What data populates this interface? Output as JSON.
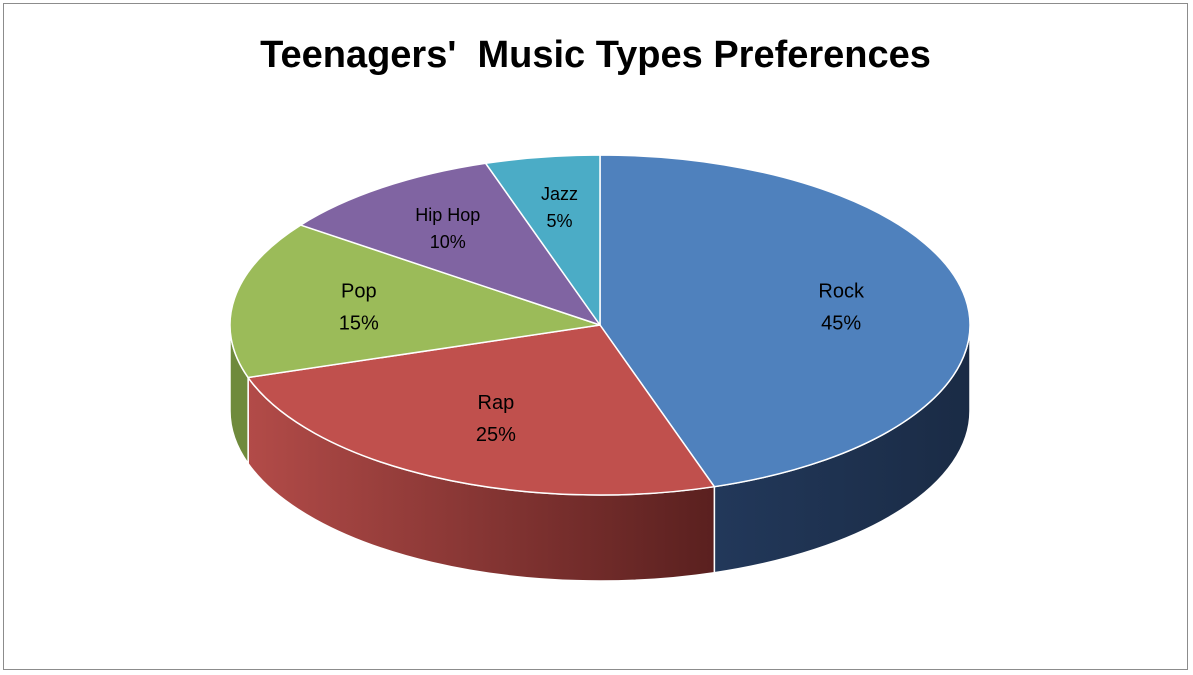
{
  "chart_data": {
    "type": "pie",
    "title": "Teenagers'  Music Types Preferences",
    "slices": [
      {
        "label": "Rock",
        "value": 45,
        "value_label": "45%",
        "color": "#4F81BD",
        "side_color": "#1F3350"
      },
      {
        "label": "Rap",
        "value": 25,
        "value_label": "25%",
        "color": "#C0504D",
        "side_color": "#8E3836"
      },
      {
        "label": "Pop",
        "value": 15,
        "value_label": "15%",
        "color": "#9BBB59",
        "side_color": "#6F8A3C"
      },
      {
        "label": "Hip Hop",
        "value": 10,
        "value_label": "10%",
        "color": "#8064A2",
        "side_color": "#5A4675"
      },
      {
        "label": "Jazz",
        "value": 5,
        "value_label": "5%",
        "color": "#4BACC6",
        "side_color": "#2F7E94"
      }
    ]
  }
}
